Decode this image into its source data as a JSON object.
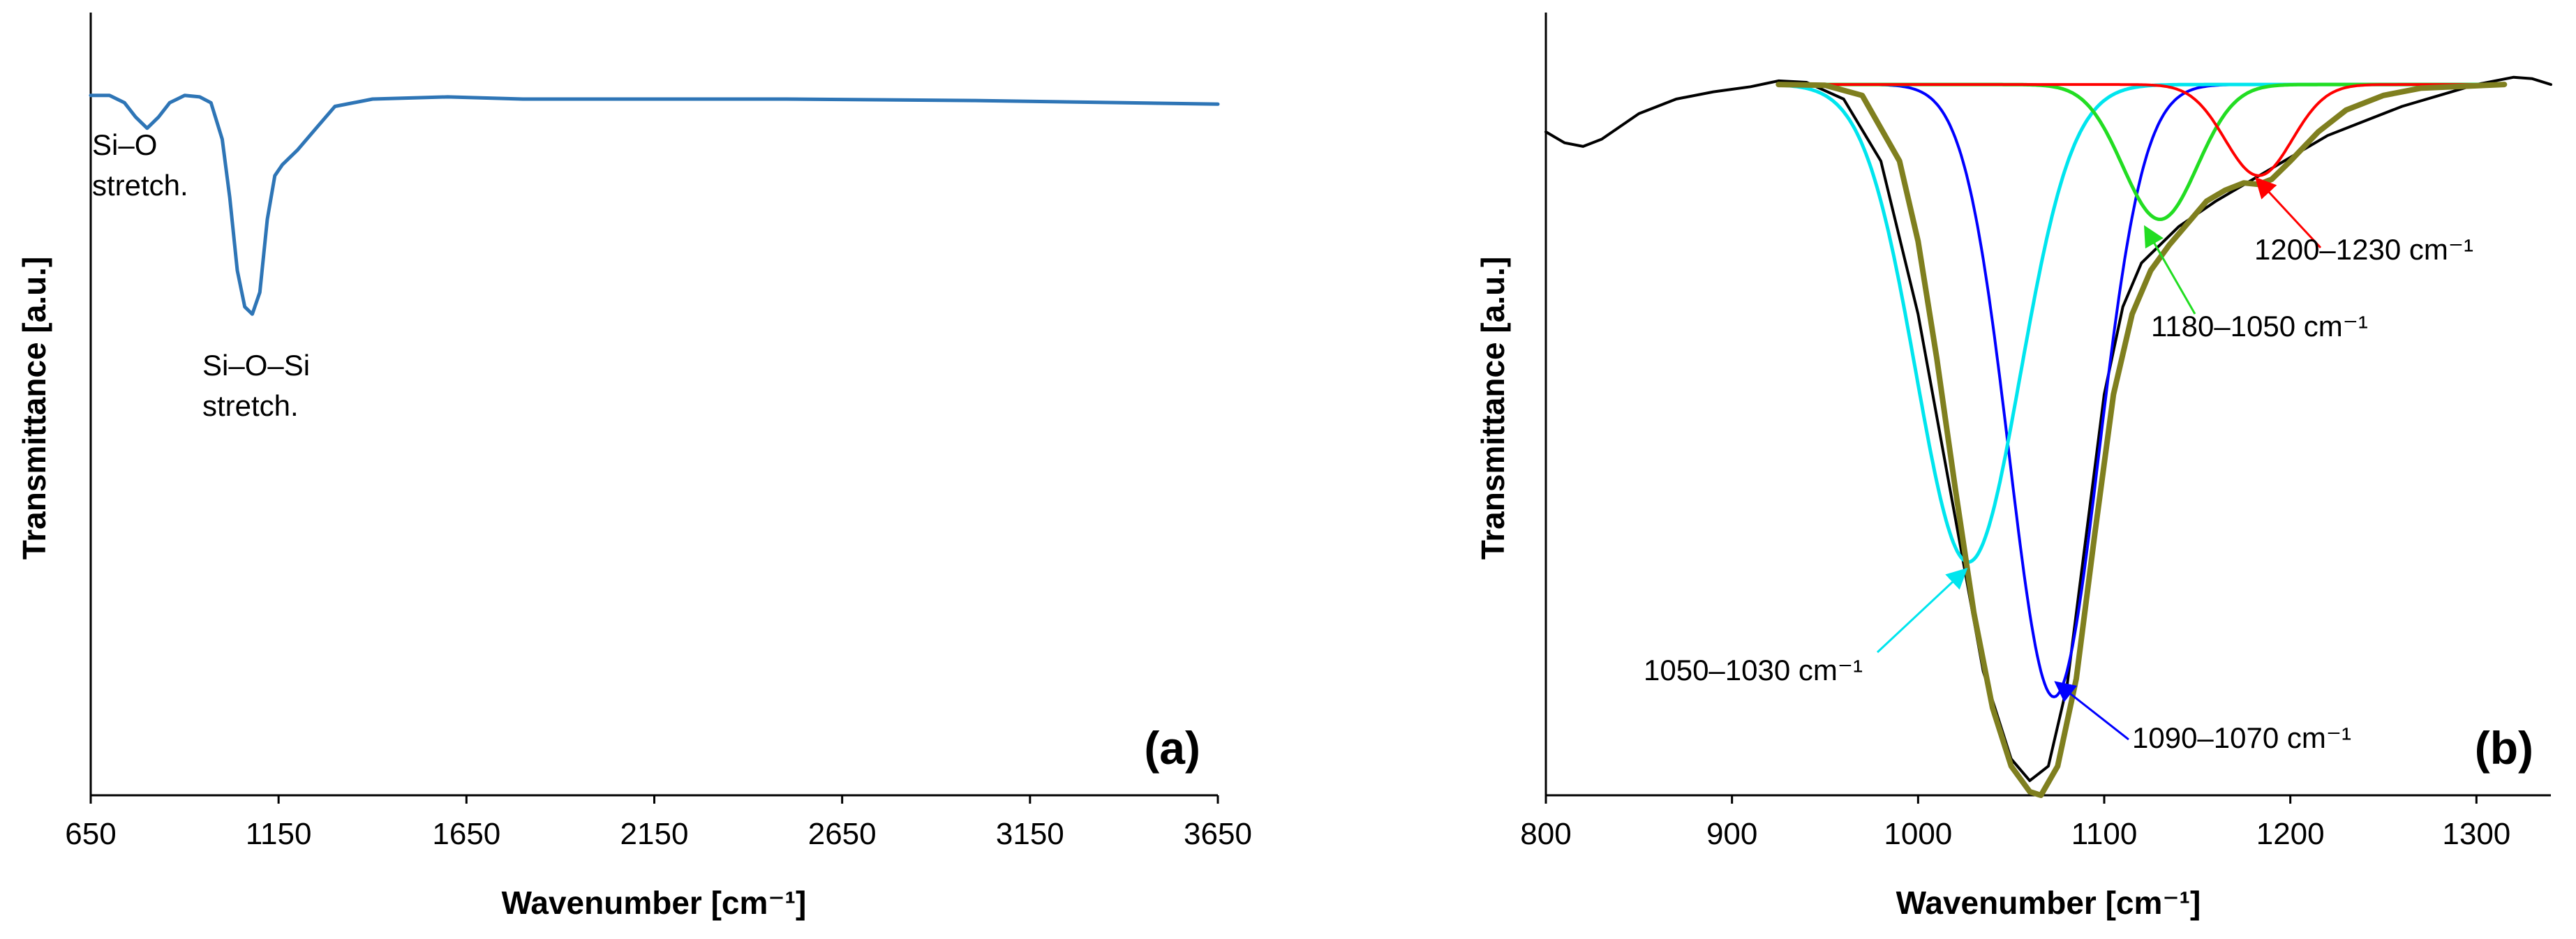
{
  "chart_data": [
    {
      "panel": "(a)",
      "type": "line",
      "xlabel": "Wavenumber [cm⁻¹]",
      "ylabel": "Transmittance [a.u.]",
      "xlim": [
        650,
        3650
      ],
      "ylim": [
        0,
        1
      ],
      "x_ticks": [
        "650",
        "1150",
        "1650",
        "2150",
        "2650",
        "3150",
        "3650"
      ],
      "y_ticks_shown": false,
      "grid": false,
      "series": [
        {
          "color": "#2e75b6",
          "points": [
            [
              650,
              0.96
            ],
            [
              700,
              0.96
            ],
            [
              740,
              0.95
            ],
            [
              770,
              0.93
            ],
            [
              800,
              0.915
            ],
            [
              830,
              0.93
            ],
            [
              860,
              0.95
            ],
            [
              900,
              0.96
            ],
            [
              940,
              0.958
            ],
            [
              970,
              0.95
            ],
            [
              1000,
              0.9
            ],
            [
              1020,
              0.82
            ],
            [
              1040,
              0.72
            ],
            [
              1060,
              0.67
            ],
            [
              1080,
              0.66
            ],
            [
              1100,
              0.69
            ],
            [
              1120,
              0.79
            ],
            [
              1140,
              0.85
            ],
            [
              1160,
              0.865
            ],
            [
              1200,
              0.885
            ],
            [
              1250,
              0.915
            ],
            [
              1300,
              0.945
            ],
            [
              1400,
              0.955
            ],
            [
              1600,
              0.958
            ],
            [
              1800,
              0.955
            ],
            [
              2000,
              0.955
            ],
            [
              2500,
              0.955
            ],
            [
              3000,
              0.953
            ],
            [
              3400,
              0.95
            ],
            [
              3650,
              0.948
            ]
          ]
        }
      ],
      "annotations": [
        {
          "lines": [
            "Si–O",
            "stretch."
          ]
        },
        {
          "lines": [
            "Si–O–Si",
            "stretch."
          ]
        }
      ]
    },
    {
      "panel": "(b)",
      "type": "line",
      "xlabel": "Wavenumber [cm⁻¹]",
      "ylabel": "Transmittance [a.u.]",
      "xlim": [
        800,
        1340
      ],
      "ylim": [
        0,
        1
      ],
      "x_ticks": [
        "800",
        "900",
        "1000",
        "1100",
        "1200",
        "1300"
      ],
      "y_ticks_shown": false,
      "grid": false,
      "series": [
        {
          "color": "#000000",
          "points": [
            [
              800,
              0.91
            ],
            [
              810,
              0.895
            ],
            [
              820,
              0.89
            ],
            [
              830,
              0.9
            ],
            [
              850,
              0.935
            ],
            [
              870,
              0.955
            ],
            [
              890,
              0.965
            ],
            [
              910,
              0.972
            ],
            [
              925,
              0.98
            ],
            [
              940,
              0.978
            ],
            [
              960,
              0.955
            ],
            [
              980,
              0.87
            ],
            [
              1000,
              0.66
            ],
            [
              1020,
              0.38
            ],
            [
              1035,
              0.17
            ],
            [
              1050,
              0.05
            ],
            [
              1060,
              0.02
            ],
            [
              1070,
              0.04
            ],
            [
              1080,
              0.15
            ],
            [
              1090,
              0.35
            ],
            [
              1100,
              0.55
            ],
            [
              1110,
              0.67
            ],
            [
              1120,
              0.73
            ],
            [
              1140,
              0.78
            ],
            [
              1160,
              0.815
            ],
            [
              1180,
              0.845
            ],
            [
              1200,
              0.875
            ],
            [
              1220,
              0.905
            ],
            [
              1240,
              0.925
            ],
            [
              1260,
              0.945
            ],
            [
              1280,
              0.96
            ],
            [
              1300,
              0.975
            ],
            [
              1320,
              0.985
            ],
            [
              1330,
              0.983
            ],
            [
              1340,
              0.975
            ]
          ]
        },
        {
          "color": "#0000ff",
          "baseline": 0.975,
          "peak_center": 1073,
          "peak_depth": 0.84,
          "peak_sigma": 24,
          "x_range": [
            925,
            1315
          ]
        },
        {
          "color": "#00e5ee",
          "baseline": 0.975,
          "peak_center": 1027,
          "peak_depth": 0.655,
          "peak_sigma": 28,
          "x_range": [
            925,
            1315
          ]
        },
        {
          "color": "#22dd22",
          "baseline": 0.975,
          "peak_center": 1130,
          "peak_depth": 0.185,
          "peak_sigma": 20,
          "x_range": [
            925,
            1315
          ]
        },
        {
          "color": "#ff0000",
          "baseline": 0.975,
          "peak_center": 1183,
          "peak_depth": 0.125,
          "peak_sigma": 18,
          "x_range": [
            925,
            1315
          ]
        },
        {
          "color": "#7f7f1f",
          "points": [
            [
              925,
              0.975
            ],
            [
              950,
              0.974
            ],
            [
              970,
              0.96
            ],
            [
              990,
              0.87
            ],
            [
              1000,
              0.76
            ],
            [
              1010,
              0.6
            ],
            [
              1020,
              0.42
            ],
            [
              1030,
              0.25
            ],
            [
              1040,
              0.12
            ],
            [
              1050,
              0.04
            ],
            [
              1060,
              0.005
            ],
            [
              1066,
              0.0
            ],
            [
              1075,
              0.04
            ],
            [
              1085,
              0.16
            ],
            [
              1095,
              0.36
            ],
            [
              1105,
              0.55
            ],
            [
              1115,
              0.66
            ],
            [
              1125,
              0.72
            ],
            [
              1135,
              0.755
            ],
            [
              1145,
              0.785
            ],
            [
              1155,
              0.815
            ],
            [
              1165,
              0.83
            ],
            [
              1175,
              0.84
            ],
            [
              1183,
              0.838
            ],
            [
              1190,
              0.845
            ],
            [
              1200,
              0.87
            ],
            [
              1215,
              0.91
            ],
            [
              1230,
              0.94
            ],
            [
              1250,
              0.96
            ],
            [
              1270,
              0.97
            ],
            [
              1315,
              0.975
            ]
          ]
        }
      ],
      "annotations": [
        {
          "text": "1200–1230 cm⁻¹",
          "color": "#ff0000"
        },
        {
          "text": "1180–1050 cm⁻¹",
          "color": "#22dd22"
        },
        {
          "text": "1050–1030 cm⁻¹",
          "color": "#00e5ee"
        },
        {
          "text": "1090–1070 cm⁻¹",
          "color": "#0000ff"
        }
      ]
    }
  ]
}
